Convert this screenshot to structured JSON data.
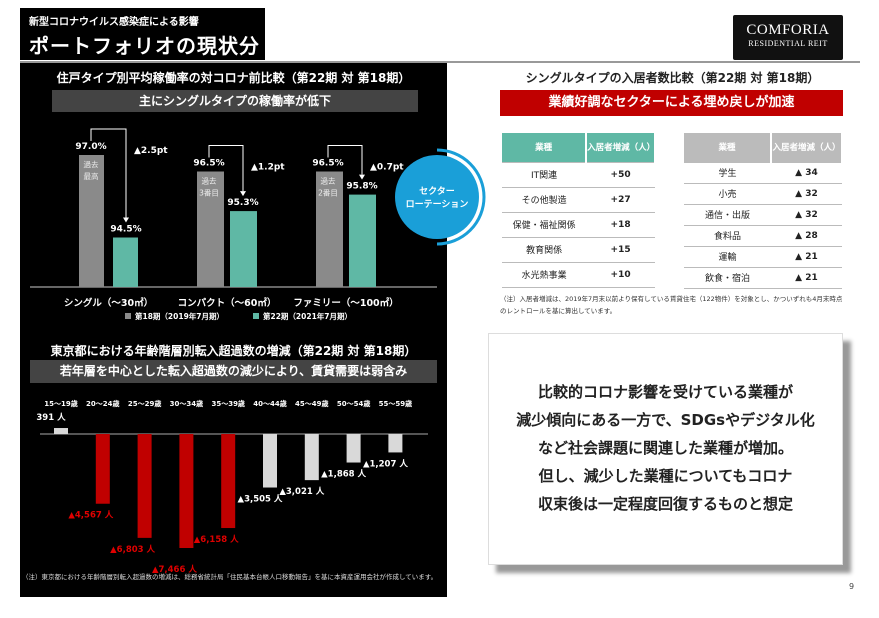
{
  "header": {
    "subtitle": "新型コロナウイルス感染症による影響",
    "title": "ポートフォリオの現状分析"
  },
  "logo": {
    "line1": "COMFORIA",
    "line2": "RESIDENTIAL REIT"
  },
  "page_number": "9",
  "colors": {
    "gray_bar": "#8a8a8a",
    "teal": "#5fb8a5",
    "red": "#c00000",
    "circle": "#1a9fd8",
    "light_bar": "#d9d9d9"
  },
  "rotation_circle": {
    "label_line1": "セクター",
    "label_line2": "ローテーション"
  },
  "chart_data": [
    {
      "type": "bar",
      "title": "住戸タイプ別平均稼働率の対コロナ前比較（第22期 対 第18期）",
      "banner": "主にシングルタイプの稼働率が低下",
      "categories": [
        "シングル（～30㎡）",
        "コンパクト（～60㎡）",
        "ファミリー（～100㎡）"
      ],
      "series": [
        {
          "name": "第18期（2019年7月期）",
          "values": [
            97.0,
            96.5,
            96.5
          ],
          "labels": [
            "97.0%",
            "96.5%",
            "96.5%"
          ]
        },
        {
          "name": "第22期（2021年7月期）",
          "values": [
            94.5,
            95.3,
            95.8
          ],
          "labels": [
            "94.5%",
            "95.3%",
            "95.8%"
          ]
        }
      ],
      "bar_notes": [
        [
          "過去",
          "最高"
        ],
        [
          "過去",
          "3番目"
        ],
        [
          "過去",
          "2番目"
        ]
      ],
      "changes": [
        "▲2.5pt",
        "▲1.2pt",
        "▲0.7pt"
      ],
      "ylim": [
        93,
        97.5
      ]
    },
    {
      "type": "bar",
      "title": "東京都における年齢階層別転入超過数の増減（第22期 対 第18期）",
      "banner": "若年層を中心とした転入超過数の減少により、賃貸需要は弱含み",
      "categories": [
        "15～19歳",
        "20～24歳",
        "25～29歳",
        "30～34歳",
        "35～39歳",
        "40～44歳",
        "45～49歳",
        "50～54歳",
        "55～59歳"
      ],
      "values": [
        391,
        -4567,
        -6803,
        -7466,
        -6158,
        -3505,
        -3021,
        -1868,
        -1207
      ],
      "labels": [
        "391 人",
        "▲4,567 人",
        "▲6,803 人",
        "▲7,466 人",
        "▲6,158 人",
        "▲3,505 人",
        "▲3,021 人",
        "▲1,868 人",
        "▲1,207 人"
      ],
      "highlight": [
        false,
        true,
        true,
        true,
        true,
        false,
        false,
        false,
        false
      ],
      "note": "（注）東京都における年齢階層別転入超過数の増減は、総務省統計局「住民基本台帳人口移動報告」を基に本資産運用会社が作成しています。"
    },
    {
      "type": "table",
      "title": "シングルタイプの入居者数比較（第22期 対 第18期）",
      "banner": "業績好調なセクターによる埋め戻しが加速",
      "increase": {
        "headers": [
          "業種",
          "入居者増減（人）"
        ],
        "rows": [
          [
            "IT関連",
            "+50"
          ],
          [
            "その他製造",
            "+27"
          ],
          [
            "保健・福祉関係",
            "+18"
          ],
          [
            "教育関係",
            "+15"
          ],
          [
            "水光熱事業",
            "+10"
          ]
        ]
      },
      "decrease": {
        "headers": [
          "業種",
          "入居者増減（人）"
        ],
        "rows": [
          [
            "学生",
            "▲ 34"
          ],
          [
            "小売",
            "▲ 32"
          ],
          [
            "通信・出版",
            "▲ 32"
          ],
          [
            "食料品",
            "▲ 28"
          ],
          [
            "運輸",
            "▲ 21"
          ],
          [
            "飲食・宿泊",
            "▲ 21"
          ]
        ]
      },
      "note": "（注）入居者増減は、2019年7月末以前より保有している賃貸住宅（122物件）を対象とし、かついずれも4月末時点のレントロールを基に算出しています。"
    }
  ],
  "message": [
    "比較的コロナ影響を受けている業種が",
    "減少傾向にある一方で、SDGsやデジタル化",
    "など社会課題に関連した業種が増加。",
    "但し、減少した業種についてもコロナ",
    "収束後は一定程度回復するものと想定"
  ]
}
